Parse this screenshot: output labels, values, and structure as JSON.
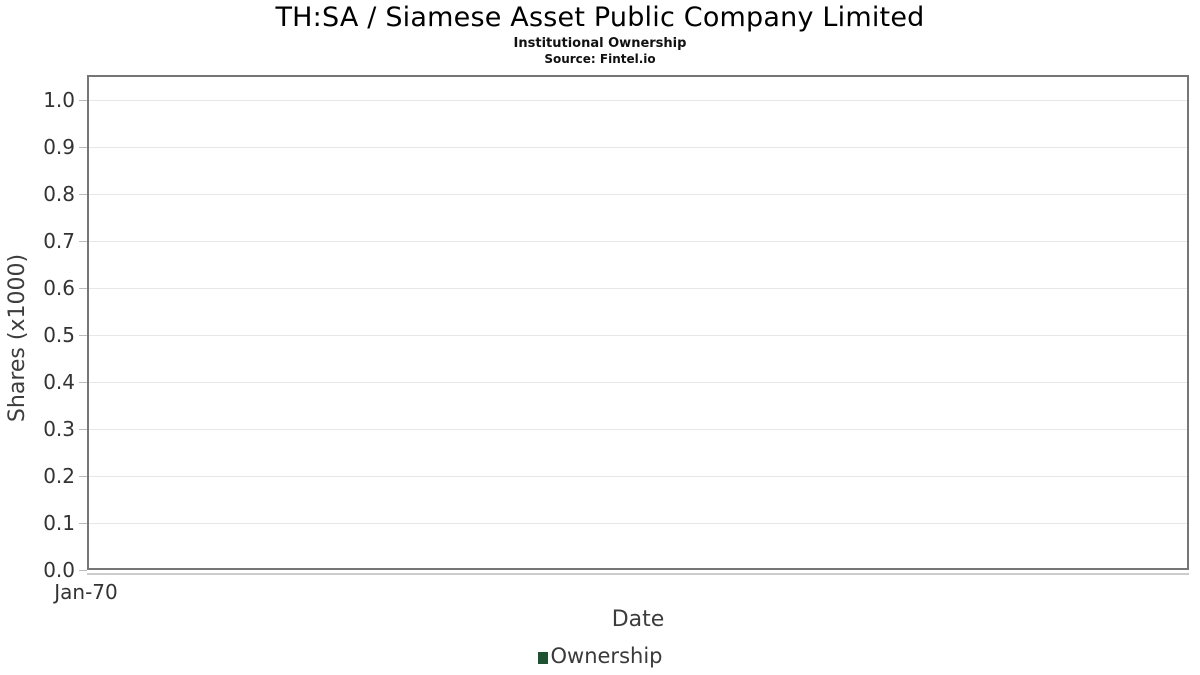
{
  "header": {
    "title": "TH:SA / Siamese Asset Public Company Limited",
    "subtitle": "Institutional Ownership",
    "source": "Source: Fintel.io"
  },
  "chart_data": {
    "type": "line",
    "title": "TH:SA / Siamese Asset Public Company Limited",
    "subtitle": "Institutional Ownership",
    "source": "Source: Fintel.io",
    "xlabel": "Date",
    "ylabel": "Shares (x1000)",
    "x_tick_labels": [
      "Jan-70"
    ],
    "y_tick_labels": [
      "0.0",
      "0.1",
      "0.2",
      "0.3",
      "0.4",
      "0.5",
      "0.6",
      "0.7",
      "0.8",
      "0.9",
      "1.0"
    ],
    "ylim": [
      0.0,
      1.0
    ],
    "grid": true,
    "legend_position": "bottom-center",
    "series": [
      {
        "name": "Ownership",
        "color": "#1f5230",
        "x": [],
        "values": []
      }
    ]
  },
  "colors": {
    "plot_border": "#767676",
    "grid_line": "#e7e7e7",
    "x_axis_line": "#cccccc",
    "tick_text": "#333333",
    "axis_title_text": "#3d3d3d",
    "title_text": "#000000",
    "series_ownership": "#1f5230"
  }
}
